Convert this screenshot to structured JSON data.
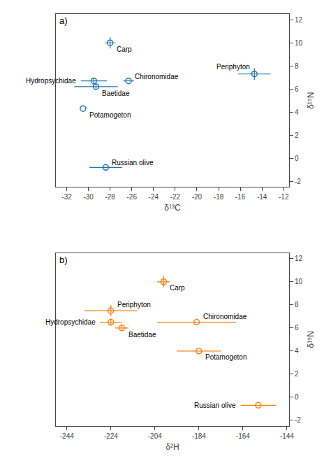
{
  "chart_data": [
    {
      "type": "scatter",
      "title": "a)",
      "xlabel": "δ¹³C",
      "ylabel": "δ¹⁵N",
      "xlim": [
        -33,
        -11.5
      ],
      "ylim": [
        -2.5,
        12.5
      ],
      "xticks": [
        -32,
        -30,
        -28,
        -26,
        -24,
        -22,
        -20,
        -18,
        -16,
        -14,
        -12
      ],
      "yticks": [
        -2,
        0,
        2,
        4,
        6,
        8,
        10,
        12
      ],
      "grid": false,
      "marker": "circle-open",
      "labels": [
        "Carp",
        "Hydropsychidae",
        "Chironomidae",
        "Periphyton",
        "Baetidae",
        "Potamogeton",
        "Russian olive"
      ],
      "x": [
        -28.0,
        -29.5,
        -26.3,
        -14.7,
        -29.3,
        -30.5,
        -28.4
      ],
      "values": [
        10.0,
        6.7,
        6.7,
        7.3,
        6.2,
        4.3,
        -0.8
      ],
      "xerr": [
        0.5,
        1.2,
        0.5,
        1.5,
        2.0,
        0.0,
        1.5
      ],
      "yerr": [
        0.5,
        0.3,
        0.0,
        0.5,
        0.2,
        0.0,
        0.0
      ]
    },
    {
      "type": "scatter",
      "title": "b)",
      "xlabel": "δ²H",
      "ylabel": "δ¹⁵N",
      "xlim": [
        -249,
        -143
      ],
      "ylim": [
        -2.5,
        12.5
      ],
      "xticks": [
        -244,
        -224,
        -204,
        -184,
        -164,
        -144
      ],
      "yticks": [
        -2,
        0,
        2,
        4,
        6,
        8,
        10,
        12
      ],
      "grid": false,
      "marker": "circle-open",
      "labels": [
        "Carp",
        "Periphyton",
        "Hydropsychidae",
        "Baetidae",
        "Chironomidae",
        "Potamogeton",
        "Russian olive"
      ],
      "x": [
        -200.0,
        -224.0,
        -224.0,
        -219.0,
        -185.0,
        -184.0,
        -157.0
      ],
      "values": [
        10.0,
        7.5,
        6.5,
        6.0,
        6.5,
        4.0,
        -0.7
      ],
      "xerr": [
        3.0,
        12.0,
        5.0,
        3.0,
        18.0,
        10.0,
        8.0
      ],
      "yerr": [
        0.5,
        0.5,
        0.3,
        0.25,
        0.0,
        0.0,
        0.0
      ]
    }
  ]
}
